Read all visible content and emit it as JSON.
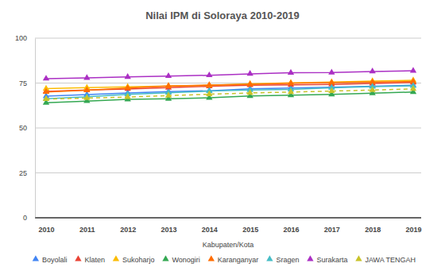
{
  "chart_data": {
    "type": "line",
    "title": "Nilai IPM di Soloraya 2010-2019",
    "x_label": "Kabupaten/Kota",
    "categories": [
      "2010",
      "2011",
      "2012",
      "2013",
      "2014",
      "2015",
      "2016",
      "2017",
      "2018",
      "2019"
    ],
    "ylim": [
      0,
      100
    ],
    "yticks": [
      0,
      25,
      50,
      75,
      100
    ],
    "grid": true,
    "legend": "bottom",
    "marker": "triangle",
    "series": [
      {
        "name": "Boyolali",
        "color": "#4285f4",
        "values": [
          67.69,
          68.56,
          69.44,
          70.21,
          70.71,
          71.74,
          72.18,
          72.64,
          73.22,
          73.8
        ]
      },
      {
        "name": "Klaten",
        "color": "#ea4335",
        "values": [
          70.4,
          71.18,
          71.71,
          72.41,
          73.19,
          73.81,
          73.97,
          74.25,
          74.79,
          75.29
        ]
      },
      {
        "name": "Sukoharjo",
        "color": "#fbbc04",
        "values": [
          71.86,
          72.41,
          72.85,
          73.38,
          73.76,
          74.53,
          75.06,
          75.56,
          76.07,
          76.52
        ]
      },
      {
        "name": "Wonogiri",
        "color": "#34a853",
        "values": [
          64.05,
          64.95,
          65.94,
          66.26,
          66.77,
          67.76,
          68.23,
          68.66,
          69.37,
          69.98
        ]
      },
      {
        "name": "Karanganyar",
        "color": "#ff6d01",
        "values": [
          70.06,
          70.97,
          72.26,
          73.33,
          73.89,
          74.26,
          74.9,
          75.22,
          75.54,
          75.89
        ]
      },
      {
        "name": "Sragen",
        "color": "#46bdc6",
        "values": [
          66.29,
          67.38,
          68.71,
          69.62,
          70.52,
          71.1,
          71.43,
          72.4,
          72.96,
          73.43
        ]
      },
      {
        "name": "Surakarta",
        "color": "#ab30c4",
        "values": [
          77.45,
          77.86,
          78.44,
          78.89,
          79.34,
          80.14,
          80.76,
          80.85,
          81.46,
          81.86
        ]
      },
      {
        "name": "JAWA TENGAH",
        "color": "#c9c32a",
        "line_style": "dashed",
        "values": [
          66.08,
          66.64,
          67.21,
          68.02,
          68.78,
          69.49,
          69.98,
          70.52,
          71.12,
          71.73
        ]
      }
    ]
  }
}
